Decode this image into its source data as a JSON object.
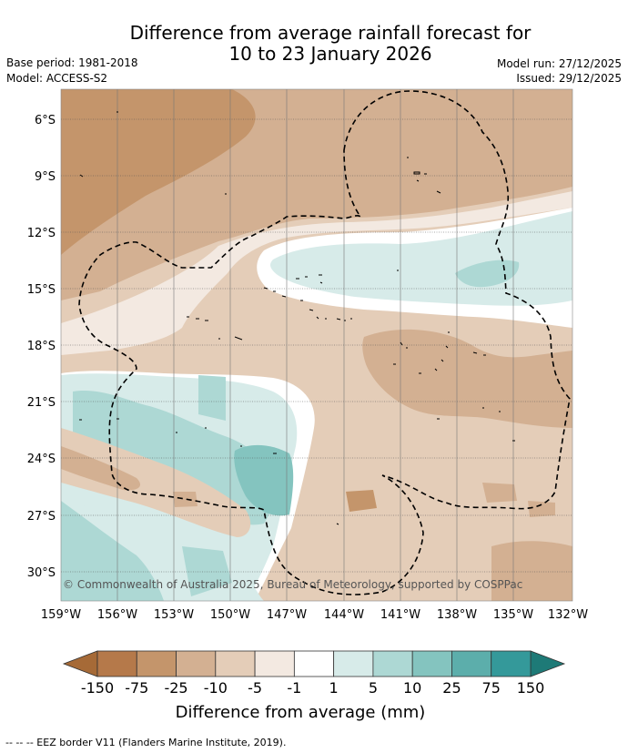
{
  "title": {
    "line1": "Difference from average rainfall forecast for",
    "line2": "10 to 23 January 2026"
  },
  "meta": {
    "base_period": "Base period: 1981-2018",
    "model": "Model: ACCESS-S2",
    "model_run": "Model run: 27/12/2025",
    "issued": "Issued: 29/12/2025"
  },
  "map": {
    "lat_labels": [
      "6°S",
      "9°S",
      "12°S",
      "15°S",
      "18°S",
      "21°S",
      "24°S",
      "27°S",
      "30°S"
    ],
    "lon_labels": [
      "159°W",
      "156°W",
      "153°W",
      "150°W",
      "147°W",
      "144°W",
      "141°W",
      "138°W",
      "135°W",
      "132°W"
    ],
    "copyright": "© Commonwealth of Australia 2025, Bureau of Meteorology, supported by COSPPac"
  },
  "legend": {
    "labels": [
      "-150",
      "-75",
      "-25",
      "-10",
      "-5",
      "-1",
      "1",
      "5",
      "10",
      "25",
      "75",
      "150"
    ],
    "colors": [
      "#a66a37",
      "#b5794a",
      "#c4956b",
      "#d3b092",
      "#e4cdb8",
      "#f3e9e1",
      "#ffffff",
      "#d7ebe9",
      "#add8d4",
      "#84c4bf",
      "#5caeab",
      "#34999a",
      "#1e7a77"
    ],
    "title": "Difference from average (mm)"
  },
  "footnote": "--  --  -- EEZ border V11 (Flanders Marine Institute, 2019)."
}
